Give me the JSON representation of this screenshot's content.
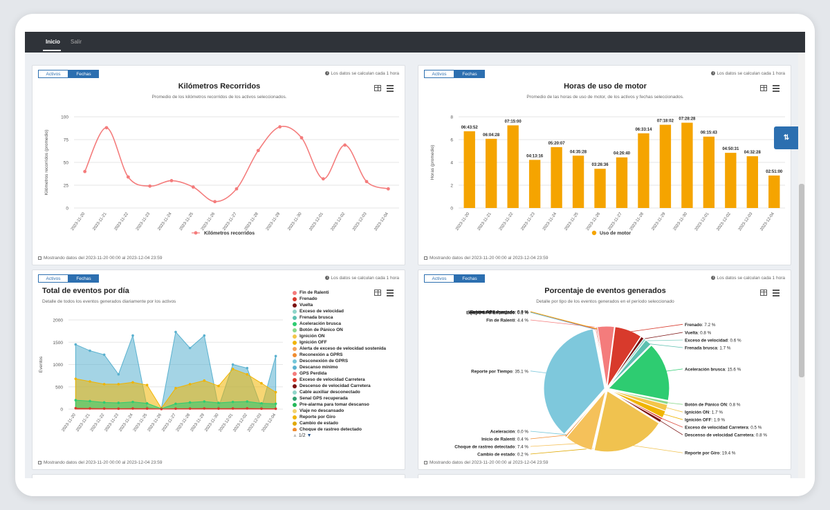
{
  "nav": {
    "home": "Inicio",
    "logout": "Salir"
  },
  "toggle": {
    "assets": "Activos",
    "dates": "Fechas"
  },
  "note": "Los datos se calculan cada 1 hora",
  "footer": "Mostrando datos del 2023-11-20 00:00 al 2023-12-04 23:59",
  "side_tab": "⇅",
  "dates": [
    "2023-11-20",
    "2023-11-21",
    "2023-11-22",
    "2023-11-23",
    "2023-11-24",
    "2023-11-25",
    "2023-11-26",
    "2023-11-27",
    "2023-11-28",
    "2023-11-29",
    "2023-11-30",
    "2023-12-01",
    "2023-12-02",
    "2023-12-03",
    "2023-12-04"
  ],
  "km": {
    "title": "Kilómetros Recorridos",
    "subtitle": "Promedio de los kilómetros recorridos de los activos seleccionados.",
    "ylabel": "Kilómetros recorridos (promedio)",
    "legend": "Kilómetros recorridos",
    "color": "#f47c7c"
  },
  "motor": {
    "title": "Horas de uso de motor",
    "subtitle": "Promedio de las horas de uso de motor, de los activos y fechas seleccionados.",
    "ylabel": "Horas (promedio)",
    "legend": "Uso de motor",
    "color": "#f5a400"
  },
  "events": {
    "title": "Total de eventos por día",
    "subtitle": "Detalle de todos los eventos generados diariamente por los activos",
    "ylabel": "Eventos",
    "legend_page": "1/2",
    "legend": [
      {
        "name": "Fin de Ralenti",
        "color": "#f47c7c"
      },
      {
        "name": "Frenado",
        "color": "#d83a2c"
      },
      {
        "name": "Vuelta",
        "color": "#7a1010"
      },
      {
        "name": "Exceso de velocidad",
        "color": "#8fd5c9"
      },
      {
        "name": "Frenada brusca",
        "color": "#5cc0b0"
      },
      {
        "name": "Aceleración brusca",
        "color": "#2ecc71"
      },
      {
        "name": "Botón de Pánico ON",
        "color": "#8bd88b"
      },
      {
        "name": "Ignición ON",
        "color": "#f3c64a"
      },
      {
        "name": "Ignición OFF",
        "color": "#f0b400"
      },
      {
        "name": "Alerta de exceso de velocidad sostenida",
        "color": "#f5a35c"
      },
      {
        "name": "Reconexión a GPRS",
        "color": "#f08c30"
      },
      {
        "name": "Desconexión de GPRS",
        "color": "#74c6d8"
      },
      {
        "name": "Descanso mínimo",
        "color": "#5ab1cf"
      },
      {
        "name": "GPS Perdida",
        "color": "#f47c7c"
      },
      {
        "name": "Exceso de velocidad Carretera",
        "color": "#d83a2c"
      },
      {
        "name": "Descenso de velocidad Carretera",
        "color": "#7a1010"
      },
      {
        "name": "Cable auxiliar desconectado",
        "color": "#8fd5c9"
      },
      {
        "name": "Senal GPS recuperada",
        "color": "#2e9e6e"
      },
      {
        "name": "Pre-alarma para tomar descanso",
        "color": "#25b85a"
      },
      {
        "name": "Viaje no descansado",
        "color": "#f3d26a"
      },
      {
        "name": "Reporte por Giro",
        "color": "#f0b400"
      },
      {
        "name": "Cambio de estado",
        "color": "#e0a800"
      },
      {
        "name": "Choque de rastreo detectado",
        "color": "#f08c30"
      }
    ]
  },
  "pie": {
    "title": "Porcentaje de eventos generados",
    "subtitle": "Detalle por tipo de los eventos generados en el período seleccionado"
  },
  "chart_data": [
    {
      "type": "line",
      "title": "Kilómetros Recorridos",
      "subtitle": "Promedio de los kilómetros recorridos de los activos seleccionados.",
      "ylabel": "Kilómetros recorridos (promedio)",
      "ylim": [
        0,
        100
      ],
      "yticks": [
        0,
        25,
        50,
        75,
        100
      ],
      "series": [
        {
          "name": "Kilómetros recorridos",
          "values": [
            40,
            88,
            34,
            24,
            30,
            23,
            7,
            21,
            63,
            89,
            77,
            32,
            69,
            29,
            21
          ]
        }
      ]
    },
    {
      "type": "bar",
      "title": "Horas de uso de motor",
      "ylabel": "Horas (promedio)",
      "ylim": [
        0,
        8
      ],
      "yticks": [
        0,
        2,
        4,
        6,
        8
      ],
      "series": [
        {
          "name": "Uso de motor",
          "values": [
            6.73,
            6.07,
            7.25,
            4.22,
            5.34,
            4.59,
            3.44,
            4.44,
            6.55,
            7.3,
            7.48,
            6.26,
            4.84,
            4.54,
            2.85
          ]
        }
      ],
      "data_labels": [
        "06:43:52",
        "06:04:28",
        "07:15:00",
        "04:13:16",
        "05:20:07",
        "04:35:28",
        "03:26:36",
        "04:26:40",
        "06:33:14",
        "07:18:02",
        "07:28:28",
        "06:15:43",
        "04:50:31",
        "04:32:28",
        "02:51:00"
      ]
    },
    {
      "type": "area",
      "title": "Total de eventos por día",
      "ylabel": "Eventos",
      "ylim": [
        0,
        2000
      ],
      "yticks": [
        0,
        500,
        1000,
        1500,
        2000
      ],
      "series": [
        {
          "name": "Reporte por Giro",
          "color": "#f0b400",
          "values": [
            680,
            620,
            560,
            560,
            600,
            540,
            20,
            470,
            560,
            640,
            520,
            900,
            780,
            580,
            380
          ]
        },
        {
          "name": "Descanso mínimo",
          "color": "#5ab1cf",
          "values": [
            1450,
            1310,
            1220,
            780,
            1650,
            40,
            20,
            1730,
            1370,
            1650,
            40,
            1000,
            920,
            30,
            1190
          ]
        },
        {
          "name": "Aceleración brusca",
          "color": "#2ecc71",
          "values": [
            200,
            180,
            150,
            140,
            160,
            130,
            10,
            120,
            150,
            170,
            140,
            160,
            170,
            130,
            120
          ]
        },
        {
          "name": "Frenado",
          "color": "#d83a2c",
          "values": [
            20,
            15,
            12,
            10,
            14,
            12,
            2,
            10,
            12,
            15,
            12,
            14,
            16,
            10,
            8
          ]
        }
      ]
    },
    {
      "type": "pie",
      "title": "Porcentaje de eventos generados",
      "slices": [
        {
          "name": "Fin de Ralenti",
          "value": 4.4,
          "color": "#f47c7c"
        },
        {
          "name": "Frenado",
          "value": 7.2,
          "color": "#d83a2c"
        },
        {
          "name": "Vuelta",
          "value": 0.8,
          "color": "#7a1010"
        },
        {
          "name": "Exceso de velocidad",
          "value": 0.6,
          "color": "#8fd5c9"
        },
        {
          "name": "Frenada brusca",
          "value": 1.7,
          "color": "#5cc0b0"
        },
        {
          "name": "Aceleración brusca",
          "value": 15.6,
          "color": "#2ecc71"
        },
        {
          "name": "Botón de Pánico ON",
          "value": 0.8,
          "color": "#8bd88b"
        },
        {
          "name": "Ignición ON",
          "value": 1.7,
          "color": "#f3c64a"
        },
        {
          "name": "Ignición OFF",
          "value": 1.9,
          "color": "#f0b400"
        },
        {
          "name": "Exceso de velocidad Carretera",
          "value": 0.5,
          "color": "#d83a2c"
        },
        {
          "name": "Descenso de velocidad Carretera",
          "value": 0.8,
          "color": "#7a1010"
        },
        {
          "name": "Reporte por Giro",
          "value": 19.4,
          "color": "#f0c24f"
        },
        {
          "name": "Cambio de estado",
          "value": 0.2,
          "color": "#e0a800"
        },
        {
          "name": "Choque de rastreo detectado",
          "value": 7.4,
          "color": "#f5c15a"
        },
        {
          "name": "Inicio de Ralenti",
          "value": 0.4,
          "color": "#f08c30"
        },
        {
          "name": "Aceleración",
          "value": 0.0,
          "color": "#74c6d8"
        },
        {
          "name": "Reporte por Tiempo",
          "value": 35.1,
          "color": "#7ec8dc"
        },
        {
          "name": "Equipo GPS Encendido",
          "value": 0.1,
          "color": "#5ab1cf"
        },
        {
          "name": "Internet conectado",
          "value": 0.3,
          "color": "#f47c7c"
        },
        {
          "name": "Internet desconectado",
          "value": 0.3,
          "color": "#d83a2c"
        },
        {
          "name": "Equipo GPS Apagado",
          "value": 0.0,
          "color": "#f0b400"
        }
      ]
    }
  ]
}
